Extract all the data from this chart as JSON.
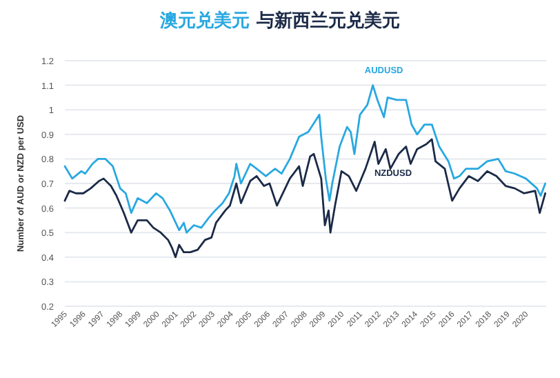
{
  "chart_data": {
    "type": "line",
    "title": "澳元兑美元 与新西兰元兑美元",
    "ylabel": "Number of AUD or NZD per USD",
    "xlim": [
      1995,
      2021.1
    ],
    "xticks": [
      1995,
      1996,
      1997,
      1998,
      1999,
      2000,
      2001,
      2002,
      2003,
      2004,
      2005,
      2006,
      2007,
      2008,
      2009,
      2010,
      2011,
      2012,
      2013,
      2014,
      2015,
      2016,
      2017,
      2018,
      2019,
      2020
    ],
    "ylim": [
      0.2,
      1.2
    ],
    "yticks": [
      0.2,
      0.3,
      0.4,
      0.5,
      0.6,
      0.7,
      0.8,
      0.9,
      1,
      1.1,
      1.2
    ],
    "grid": "y",
    "series": [
      {
        "name": "AUDUSD",
        "color": "#29a8e0",
        "x": [
          1995.0,
          1995.4,
          1995.9,
          1996.1,
          1996.5,
          1996.8,
          1997.2,
          1997.6,
          1998.0,
          1998.3,
          1998.6,
          1998.95,
          1999.45,
          1999.95,
          2000.3,
          2000.7,
          2000.95,
          2001.2,
          2001.45,
          2001.6,
          2002.0,
          2002.4,
          2002.8,
          2003.15,
          2003.55,
          2003.9,
          2004.2,
          2004.3,
          2004.55,
          2005.05,
          2005.4,
          2005.9,
          2006.4,
          2006.75,
          2007.2,
          2007.7,
          2008.2,
          2008.8,
          2008.9,
          2009.15,
          2009.35,
          2009.5,
          2009.9,
          2010.3,
          2010.5,
          2010.7,
          2011.0,
          2011.4,
          2011.7,
          2011.95,
          2012.3,
          2012.5,
          2013.0,
          2013.5,
          2013.8,
          2014.1,
          2014.5,
          2014.9,
          2015.3,
          2015.8,
          2016.1,
          2016.4,
          2016.75,
          2017.4,
          2017.9,
          2018.5,
          2018.9,
          2019.4,
          2020.0,
          2020.6,
          2020.8,
          2021.05
        ],
        "values": [
          0.77,
          0.72,
          0.75,
          0.74,
          0.78,
          0.8,
          0.8,
          0.77,
          0.68,
          0.66,
          0.58,
          0.64,
          0.62,
          0.66,
          0.64,
          0.59,
          0.55,
          0.51,
          0.54,
          0.5,
          0.53,
          0.52,
          0.56,
          0.59,
          0.62,
          0.66,
          0.73,
          0.78,
          0.7,
          0.78,
          0.76,
          0.73,
          0.76,
          0.74,
          0.8,
          0.89,
          0.91,
          0.98,
          0.89,
          0.72,
          0.63,
          0.7,
          0.85,
          0.93,
          0.91,
          0.82,
          0.98,
          1.02,
          1.1,
          1.04,
          0.97,
          1.05,
          1.04,
          1.04,
          0.94,
          0.9,
          0.94,
          0.94,
          0.85,
          0.79,
          0.72,
          0.73,
          0.76,
          0.76,
          0.79,
          0.8,
          0.75,
          0.74,
          0.72,
          0.68,
          0.65,
          0.7
        ]
      },
      {
        "name": "NZDUSD",
        "color": "#1b2a47",
        "x": [
          1995.0,
          1995.25,
          1995.6,
          1996.0,
          1996.4,
          1996.85,
          1997.1,
          1997.5,
          1997.8,
          1998.2,
          1998.6,
          1998.95,
          1999.45,
          1999.8,
          2000.2,
          2000.6,
          2000.8,
          2001.0,
          2001.2,
          2001.45,
          2001.8,
          2002.2,
          2002.6,
          2002.95,
          2003.2,
          2003.7,
          2003.95,
          2004.3,
          2004.55,
          2005.05,
          2005.4,
          2005.8,
          2006.1,
          2006.5,
          2007.2,
          2007.7,
          2007.9,
          2008.3,
          2008.5,
          2008.9,
          2009.1,
          2009.3,
          2009.4,
          2009.65,
          2010.0,
          2010.4,
          2010.8,
          2011.3,
          2011.8,
          2012.0,
          2012.4,
          2012.65,
          2013.1,
          2013.5,
          2013.75,
          2014.1,
          2014.6,
          2014.9,
          2015.1,
          2015.6,
          2016.0,
          2016.4,
          2016.9,
          2017.4,
          2017.9,
          2018.4,
          2018.9,
          2019.4,
          2019.9,
          2020.5,
          2020.75,
          2020.9,
          2021.05
        ],
        "values": [
          0.63,
          0.67,
          0.66,
          0.66,
          0.68,
          0.71,
          0.72,
          0.69,
          0.65,
          0.58,
          0.5,
          0.55,
          0.55,
          0.52,
          0.5,
          0.47,
          0.44,
          0.4,
          0.45,
          0.42,
          0.42,
          0.43,
          0.47,
          0.48,
          0.54,
          0.59,
          0.61,
          0.7,
          0.62,
          0.71,
          0.73,
          0.69,
          0.7,
          0.61,
          0.72,
          0.77,
          0.69,
          0.81,
          0.82,
          0.72,
          0.53,
          0.59,
          0.5,
          0.61,
          0.75,
          0.73,
          0.67,
          0.76,
          0.87,
          0.78,
          0.84,
          0.76,
          0.82,
          0.85,
          0.78,
          0.84,
          0.86,
          0.88,
          0.79,
          0.76,
          0.63,
          0.68,
          0.73,
          0.71,
          0.75,
          0.73,
          0.69,
          0.68,
          0.66,
          0.67,
          0.58,
          0.62,
          0.66
        ]
      }
    ]
  }
}
